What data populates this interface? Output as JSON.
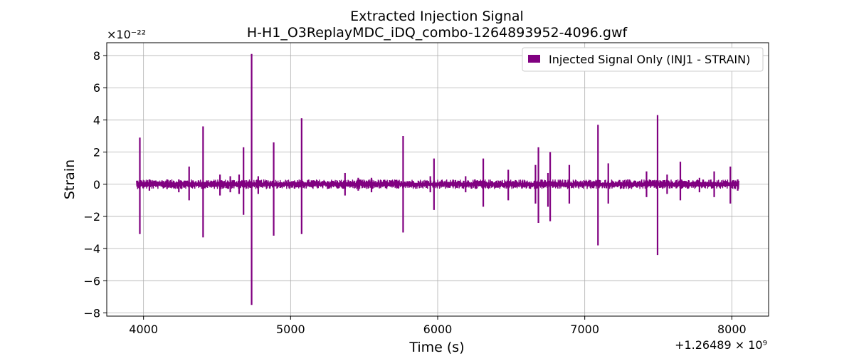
{
  "chart_data": {
    "type": "line",
    "title": "Extracted Injection Signal",
    "subtitle": "H-H1_O3ReplayMDC_iDQ_combo-1264893952-4096.gwf",
    "xlabel": "Time (s)",
    "ylabel": "Strain",
    "x_offset_label": "+1.26489 × 10⁹",
    "y_scale_label": "×10⁻²²",
    "xlim": [
      3750,
      8250
    ],
    "ylim": [
      -8.2,
      8.8
    ],
    "x_ticks": [
      4000,
      5000,
      6000,
      7000,
      8000
    ],
    "x_tick_labels": [
      "4000",
      "5000",
      "6000",
      "7000",
      "8000"
    ],
    "y_ticks": [
      -8,
      -6,
      -4,
      -2,
      0,
      2,
      4,
      6,
      8
    ],
    "y_tick_labels": [
      "−8",
      "−6",
      "−4",
      "−2",
      "0",
      "2",
      "4",
      "6",
      "8"
    ],
    "grid": true,
    "legend_position": "top-right",
    "series": [
      {
        "name": "Injected Signal Only (INJ1 - STRAIN)",
        "color": "#800080",
        "x_range": [
          3952,
          8048
        ],
        "baseline_noise_amplitude": 0.3,
        "spikes": [
          {
            "t": 3975,
            "pos": 2.9,
            "neg": -3.1
          },
          {
            "t": 4040,
            "pos": 0.3,
            "neg": -0.4
          },
          {
            "t": 4160,
            "pos": 0.3,
            "neg": -0.3
          },
          {
            "t": 4240,
            "pos": 0.3,
            "neg": -0.5
          },
          {
            "t": 4310,
            "pos": 1.1,
            "neg": -1.0
          },
          {
            "t": 4405,
            "pos": 3.6,
            "neg": -3.3
          },
          {
            "t": 4520,
            "pos": 0.6,
            "neg": -0.7
          },
          {
            "t": 4590,
            "pos": 0.5,
            "neg": -0.5
          },
          {
            "t": 4650,
            "pos": 0.6,
            "neg": -0.6
          },
          {
            "t": 4680,
            "pos": 2.3,
            "neg": -1.9
          },
          {
            "t": 4735,
            "pos": 8.1,
            "neg": -7.5
          },
          {
            "t": 4780,
            "pos": 0.5,
            "neg": -0.6
          },
          {
            "t": 4885,
            "pos": 2.6,
            "neg": -3.2
          },
          {
            "t": 5075,
            "pos": 4.1,
            "neg": -3.1
          },
          {
            "t": 5370,
            "pos": 0.7,
            "neg": -0.7
          },
          {
            "t": 5460,
            "pos": 0.4,
            "neg": -0.4
          },
          {
            "t": 5550,
            "pos": 0.4,
            "neg": -0.5
          },
          {
            "t": 5765,
            "pos": 3.0,
            "neg": -3.0
          },
          {
            "t": 5950,
            "pos": 0.5,
            "neg": -0.5
          },
          {
            "t": 5975,
            "pos": 1.6,
            "neg": -1.6
          },
          {
            "t": 6190,
            "pos": 0.5,
            "neg": -0.5
          },
          {
            "t": 6310,
            "pos": 1.6,
            "neg": -1.4
          },
          {
            "t": 6480,
            "pos": 0.9,
            "neg": -1.0
          },
          {
            "t": 6665,
            "pos": 1.2,
            "neg": -1.2
          },
          {
            "t": 6685,
            "pos": 2.3,
            "neg": -2.4
          },
          {
            "t": 6750,
            "pos": 0.7,
            "neg": -1.4
          },
          {
            "t": 6765,
            "pos": 2.0,
            "neg": -2.3
          },
          {
            "t": 6895,
            "pos": 1.2,
            "neg": -1.2
          },
          {
            "t": 7090,
            "pos": 3.7,
            "neg": -3.8
          },
          {
            "t": 7160,
            "pos": 1.3,
            "neg": -1.2
          },
          {
            "t": 7420,
            "pos": 0.8,
            "neg": -0.8
          },
          {
            "t": 7495,
            "pos": 4.3,
            "neg": -4.4
          },
          {
            "t": 7560,
            "pos": 0.6,
            "neg": -0.6
          },
          {
            "t": 7650,
            "pos": 1.4,
            "neg": -1.0
          },
          {
            "t": 7780,
            "pos": 0.4,
            "neg": -0.5
          },
          {
            "t": 7880,
            "pos": 0.8,
            "neg": -0.8
          },
          {
            "t": 7990,
            "pos": 1.1,
            "neg": -1.2
          },
          {
            "t": 8040,
            "pos": 0.3,
            "neg": -0.4
          }
        ]
      }
    ]
  }
}
